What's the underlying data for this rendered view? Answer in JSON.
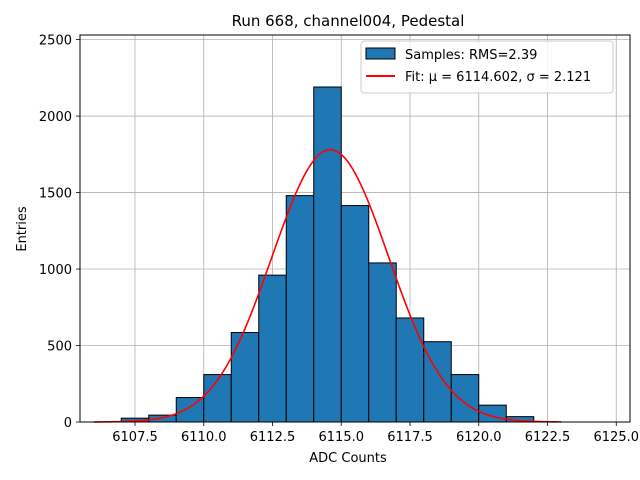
{
  "chart_data": {
    "type": "bar",
    "title": "Run 668, channel004, Pedestal",
    "xlabel": "ADC Counts",
    "ylabel": "Entries",
    "xlim": [
      6105.5,
      6125.5
    ],
    "ylim": [
      0,
      2530
    ],
    "grid": true,
    "legend_position": "top-right",
    "x_ticks": [
      "6107.5",
      "6110.0",
      "6112.5",
      "6115.0",
      "6117.5",
      "6120.0",
      "6122.5",
      "6125.0"
    ],
    "y_ticks": [
      "0",
      "500",
      "1000",
      "1500",
      "2000",
      "2500"
    ],
    "bin_edges": [
      6106,
      6107,
      6108,
      6109,
      6110,
      6111,
      6112,
      6113,
      6114,
      6115,
      6116,
      6117,
      6118,
      6119,
      6120,
      6121,
      6122,
      6123,
      6124
    ],
    "values": [
      0,
      25,
      45,
      160,
      310,
      585,
      960,
      1480,
      2190,
      1415,
      1040,
      680,
      525,
      310,
      110,
      35,
      0,
      0
    ],
    "series": [
      {
        "name": "Samples: RMS=2.39",
        "kind": "histogram",
        "color": "#1f77b4",
        "edge_color": "#000000"
      },
      {
        "name": "Fit: μ = 6114.602, σ = 2.121",
        "kind": "gaussian",
        "mu": 6114.602,
        "sigma": 2.121,
        "amplitude": 1780,
        "x_range": [
          6106,
          6123
        ],
        "color": "#ff0000"
      }
    ]
  }
}
